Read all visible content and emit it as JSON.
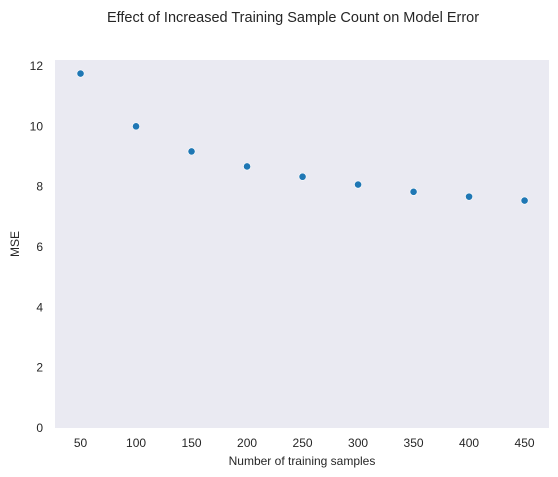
{
  "chart_data": {
    "type": "scatter",
    "title": "Effect of Increased Training Sample Count on Model Error",
    "xlabel": "Number of training samples",
    "ylabel": "MSE",
    "x": [
      50,
      100,
      150,
      200,
      250,
      300,
      350,
      400,
      450
    ],
    "y": [
      11.75,
      10.0,
      9.17,
      8.67,
      8.33,
      8.07,
      7.83,
      7.67,
      7.54
    ],
    "xticks": [
      "50",
      "100",
      "150",
      "200",
      "250",
      "300",
      "350",
      "400",
      "450"
    ],
    "yticks": [
      "0",
      "2",
      "4",
      "6",
      "8",
      "10",
      "12"
    ],
    "xlim": [
      27,
      472
    ],
    "ylim": [
      0,
      12.2
    ],
    "grid": false,
    "colors": {
      "background": "#eaeaf2",
      "marker": "#1f77b4"
    }
  }
}
